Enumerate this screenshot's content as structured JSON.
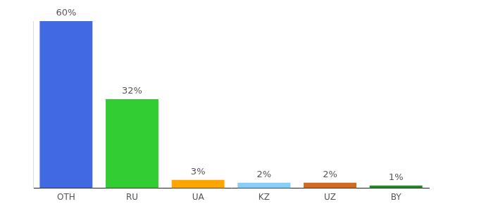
{
  "chart_data": {
    "type": "bar",
    "categories": [
      "OTH",
      "RU",
      "UA",
      "KZ",
      "UZ",
      "BY"
    ],
    "values": [
      60,
      32,
      3,
      2,
      2,
      1
    ],
    "value_labels": [
      "60%",
      "32%",
      "3%",
      "2%",
      "2%",
      "1%"
    ],
    "colors": [
      "#4169e1",
      "#32cd32",
      "#ffa500",
      "#87cefa",
      "#d2691e",
      "#228b22"
    ],
    "ylim": [
      0,
      60
    ],
    "data_labels": true,
    "grid": false,
    "tick_labels": "x"
  }
}
